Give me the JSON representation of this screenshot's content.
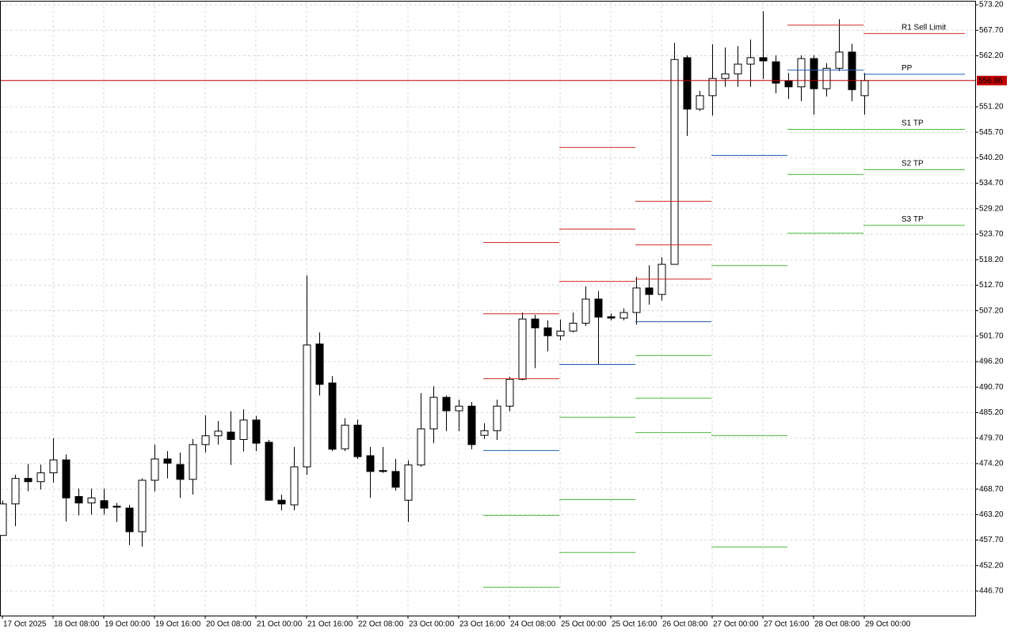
{
  "chart_data": {
    "type": "candlestick",
    "categories": [
      "17 Oct 2025",
      null,
      null,
      null,
      "18 Oct 08:00",
      null,
      null,
      null,
      "19 Oct 00:00",
      null,
      null,
      null,
      "19 Oct 16:00",
      null,
      null,
      null,
      "20 Oct 08:00",
      null,
      null,
      null,
      "21 Oct 00:00",
      null,
      null,
      null,
      "21 Oct 16:00",
      null,
      null,
      null,
      "22 Oct 08:00",
      null,
      null,
      null,
      "23 Oct 00:00",
      null,
      null,
      null,
      "23 Oct 16:00",
      null,
      null,
      null,
      "24 Oct 08:00",
      null,
      null,
      null,
      "25 Oct 00:00",
      null,
      null,
      null,
      "25 Oct 16:00",
      null,
      null,
      null,
      "26 Oct 08:00",
      null,
      null,
      null,
      "27 Oct 00:00",
      null,
      null,
      null,
      "27 Oct 16:00",
      null,
      null,
      null,
      "28 Oct 08:00",
      null,
      null,
      null,
      "29 Oct 00:00"
    ],
    "ohlc": [
      [
        458.7,
        466.2,
        458.7,
        465.5
      ],
      [
        465.5,
        471.8,
        460.7,
        471.0
      ],
      [
        471.0,
        474.1,
        468.2,
        470.3
      ],
      [
        470.3,
        474.0,
        468.6,
        472.2
      ],
      [
        472.2,
        479.7,
        470.1,
        475.0
      ],
      [
        475.0,
        476.2,
        461.7,
        466.8
      ],
      [
        467.1,
        468.8,
        463.0,
        465.7
      ],
      [
        465.7,
        468.8,
        463.2,
        466.8
      ],
      [
        466.2,
        468.8,
        463.2,
        464.6
      ],
      [
        465.0,
        465.7,
        461.6,
        464.8
      ],
      [
        464.6,
        465.3,
        456.6,
        459.5
      ],
      [
        459.5,
        471.0,
        456.3,
        470.6
      ],
      [
        470.6,
        478.3,
        468.2,
        475.2
      ],
      [
        475.2,
        476.9,
        471.0,
        474.3
      ],
      [
        474.0,
        476.6,
        466.8,
        470.8
      ],
      [
        470.8,
        479.5,
        467.5,
        478.3
      ],
      [
        478.3,
        484.6,
        476.6,
        480.2
      ],
      [
        480.2,
        483.4,
        478.3,
        481.2
      ],
      [
        481.0,
        485.5,
        473.9,
        479.4
      ],
      [
        479.4,
        485.9,
        476.8,
        483.6
      ],
      [
        483.6,
        484.5,
        476.9,
        478.6
      ],
      [
        478.8,
        479.3,
        466.2,
        466.3
      ],
      [
        466.3,
        467.5,
        464.1,
        465.5
      ],
      [
        465.3,
        477.8,
        464.1,
        473.5
      ],
      [
        473.5,
        514.8,
        471.8,
        499.8
      ],
      [
        500.0,
        502.5,
        488.9,
        491.3
      ],
      [
        491.6,
        493.1,
        476.9,
        477.3
      ],
      [
        477.4,
        484.0,
        476.9,
        482.5
      ],
      [
        482.5,
        483.7,
        475.2,
        475.7
      ],
      [
        475.9,
        477.8,
        466.8,
        472.5
      ],
      [
        472.7,
        477.8,
        472.2,
        472.5
      ],
      [
        472.5,
        475.2,
        468.4,
        469.1
      ],
      [
        466.3,
        474.9,
        461.6,
        473.9
      ],
      [
        473.9,
        489.4,
        473.5,
        481.7
      ],
      [
        481.7,
        490.9,
        478.6,
        488.5
      ],
      [
        488.5,
        488.9,
        481.2,
        485.6
      ],
      [
        485.6,
        488.0,
        481.2,
        486.6
      ],
      [
        486.6,
        487.5,
        477.3,
        478.3
      ],
      [
        480.3,
        482.9,
        479.5,
        481.3
      ],
      [
        481.3,
        488.0,
        479.3,
        486.6
      ],
      [
        486.6,
        492.9,
        485.5,
        492.4
      ],
      [
        492.4,
        506.8,
        492.2,
        505.4
      ],
      [
        505.4,
        506.3,
        494.8,
        503.5
      ],
      [
        503.5,
        505.1,
        498.4,
        501.8
      ],
      [
        501.8,
        505.3,
        500.8,
        502.8
      ],
      [
        502.8,
        506.8,
        502.5,
        504.5
      ],
      [
        504.5,
        512.4,
        503.9,
        509.7
      ],
      [
        509.7,
        511.4,
        495.7,
        505.8
      ],
      [
        505.9,
        506.6,
        505.1,
        505.6
      ],
      [
        505.6,
        507.7,
        505.1,
        506.8
      ],
      [
        506.8,
        514.5,
        504.2,
        512.1
      ],
      [
        512.1,
        517.0,
        508.5,
        510.7
      ],
      [
        510.7,
        518.7,
        509.4,
        517.2
      ],
      [
        517.2,
        565.0,
        517.2,
        561.4
      ],
      [
        561.8,
        562.3,
        544.9,
        550.7
      ],
      [
        550.7,
        554.6,
        550.3,
        553.6
      ],
      [
        553.6,
        564.7,
        549.3,
        557.3
      ],
      [
        557.3,
        564.0,
        555.5,
        558.3
      ],
      [
        558.3,
        564.3,
        555.5,
        560.4
      ],
      [
        560.4,
        565.7,
        555.5,
        561.8
      ],
      [
        561.8,
        571.8,
        557.2,
        561.1
      ],
      [
        560.9,
        562.3,
        554.1,
        556.3
      ],
      [
        556.8,
        558.5,
        552.9,
        555.5
      ],
      [
        555.5,
        562.3,
        552.4,
        561.6
      ],
      [
        561.6,
        562.3,
        549.5,
        555.1
      ],
      [
        555.1,
        560.6,
        553.4,
        559.5
      ],
      [
        559.5,
        570.1,
        558.9,
        563.0
      ],
      [
        563.0,
        564.8,
        552.4,
        554.9
      ],
      [
        553.6,
        558.5,
        549.5,
        556.86
      ]
    ],
    "up_color": "#ffffff",
    "down_color": "#000000",
    "outline_color": "#000000",
    "ylim": [
      441.4,
      573.9
    ],
    "yticks": [
      {
        "value": 573.2,
        "label": "573.20"
      },
      {
        "value": 567.7,
        "label": "567.70"
      },
      {
        "value": 562.2,
        "label": "562.20"
      },
      {
        "value": 551.2,
        "label": "551.20"
      },
      {
        "value": 545.7,
        "label": "545.70"
      },
      {
        "value": 540.2,
        "label": "540.20"
      },
      {
        "value": 534.7,
        "label": "534.70"
      },
      {
        "value": 529.2,
        "label": "529.20"
      },
      {
        "value": 523.7,
        "label": "523.70"
      },
      {
        "value": 518.2,
        "label": "518.20"
      },
      {
        "value": 512.7,
        "label": "512.70"
      },
      {
        "value": 507.2,
        "label": "507.20"
      },
      {
        "value": 501.7,
        "label": "501.70"
      },
      {
        "value": 496.2,
        "label": "496.20"
      },
      {
        "value": 490.7,
        "label": "490.70"
      },
      {
        "value": 485.2,
        "label": "485.20"
      },
      {
        "value": 479.7,
        "label": "479.70"
      },
      {
        "value": 474.2,
        "label": "474.20"
      },
      {
        "value": 468.7,
        "label": "468.70"
      },
      {
        "value": 463.2,
        "label": "463.20"
      },
      {
        "value": 457.7,
        "label": "457.70"
      },
      {
        "value": 452.2,
        "label": "452.20"
      },
      {
        "value": 446.7,
        "label": "446.70"
      }
    ],
    "grid": true,
    "last_price": 556.86,
    "last_price_color": "#c00000",
    "pivots": {
      "colors": {
        "resistance": "#d42a2a",
        "pivot": "#1f5fb0",
        "support": "#4cbb3c"
      },
      "days": [
        {
          "resistance": [
            492.6,
            506.6,
            522.0
          ],
          "pivot": 477.1,
          "support": [
            463.1,
            447.6
          ]
        },
        {
          "resistance": [
            513.6,
            524.9,
            542.5
          ],
          "pivot": 495.7,
          "support": [
            484.3,
            466.5,
            455.1
          ]
        },
        {
          "resistance": [
            514.1,
            521.5,
            530.9
          ],
          "pivot": 504.9,
          "support": [
            497.6,
            488.4,
            481.0
          ]
        },
        {
          "pivot": 540.8,
          "support": [
            517.0,
            480.3,
            456.3
          ]
        },
        {
          "resistance": [
            568.9
          ],
          "pivot": 559.2,
          "support": [
            546.4,
            536.7,
            524.0
          ]
        },
        {
          "resistance": [
            567.1
          ],
          "pivot": 558.3,
          "support": [
            546.4,
            537.7,
            525.7
          ]
        }
      ],
      "labels": {
        "resistance": [
          "R1 Sell Limit"
        ],
        "pivot": "PP",
        "support": [
          "S1 TP",
          "S2 TP",
          "S3 TP"
        ]
      }
    }
  }
}
